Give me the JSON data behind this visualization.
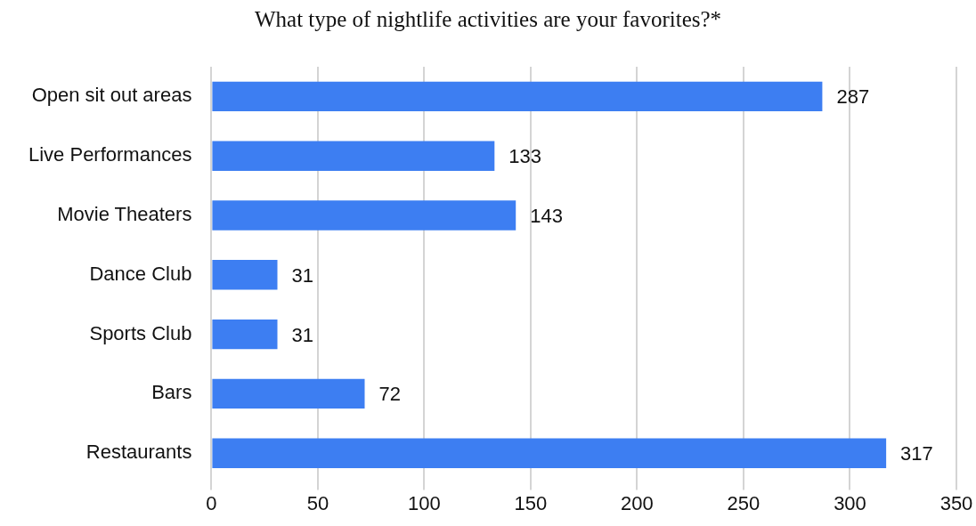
{
  "chart_data": {
    "type": "bar",
    "orientation": "horizontal",
    "title": "What type of nightlife activities are your favorites?*",
    "categories": [
      "Open sit out areas",
      "Live Performances",
      "Movie Theaters",
      "Dance Club",
      "Sports Club",
      "Bars",
      "Restaurants"
    ],
    "values": [
      287,
      133,
      143,
      31,
      31,
      72,
      317
    ],
    "color": "#3d7ef2",
    "xlim": [
      0,
      350
    ],
    "xticks": [
      0,
      50,
      100,
      150,
      200,
      250,
      300,
      350
    ],
    "grid": "x",
    "legend": false,
    "data_labels": true
  }
}
